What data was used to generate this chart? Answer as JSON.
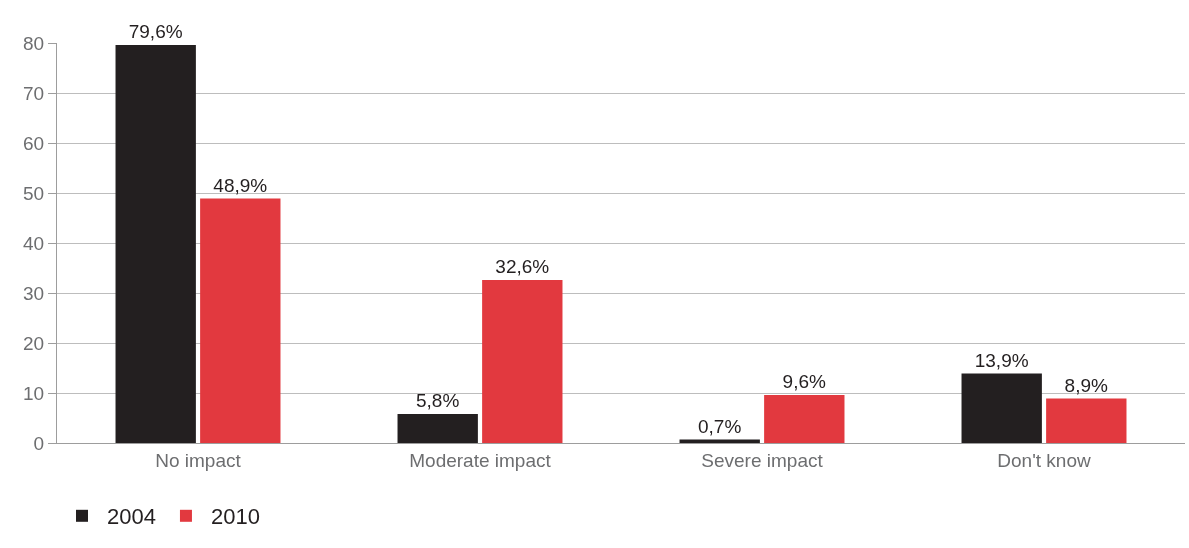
{
  "chart_data": {
    "type": "bar",
    "categories": [
      "No impact",
      "Moderate impact",
      "Severe impact",
      "Don't know"
    ],
    "series": [
      {
        "name": "2004",
        "color": "#231f20",
        "values": [
          79.6,
          5.8,
          0.7,
          13.9
        ],
        "value_labels": [
          "79,6%",
          "5,8%",
          "0,7%",
          "13,9%"
        ]
      },
      {
        "name": "2010",
        "color": "#e2393f",
        "values": [
          48.9,
          32.6,
          9.6,
          8.9
        ],
        "value_labels": [
          "48,9%",
          "32,6%",
          "9,6%",
          "8,9%"
        ]
      }
    ],
    "ylim": [
      0,
      80
    ],
    "yticks": [
      0,
      10,
      20,
      30,
      40,
      50,
      60,
      70,
      80
    ],
    "grid": "y",
    "legend": "bottom left"
  }
}
